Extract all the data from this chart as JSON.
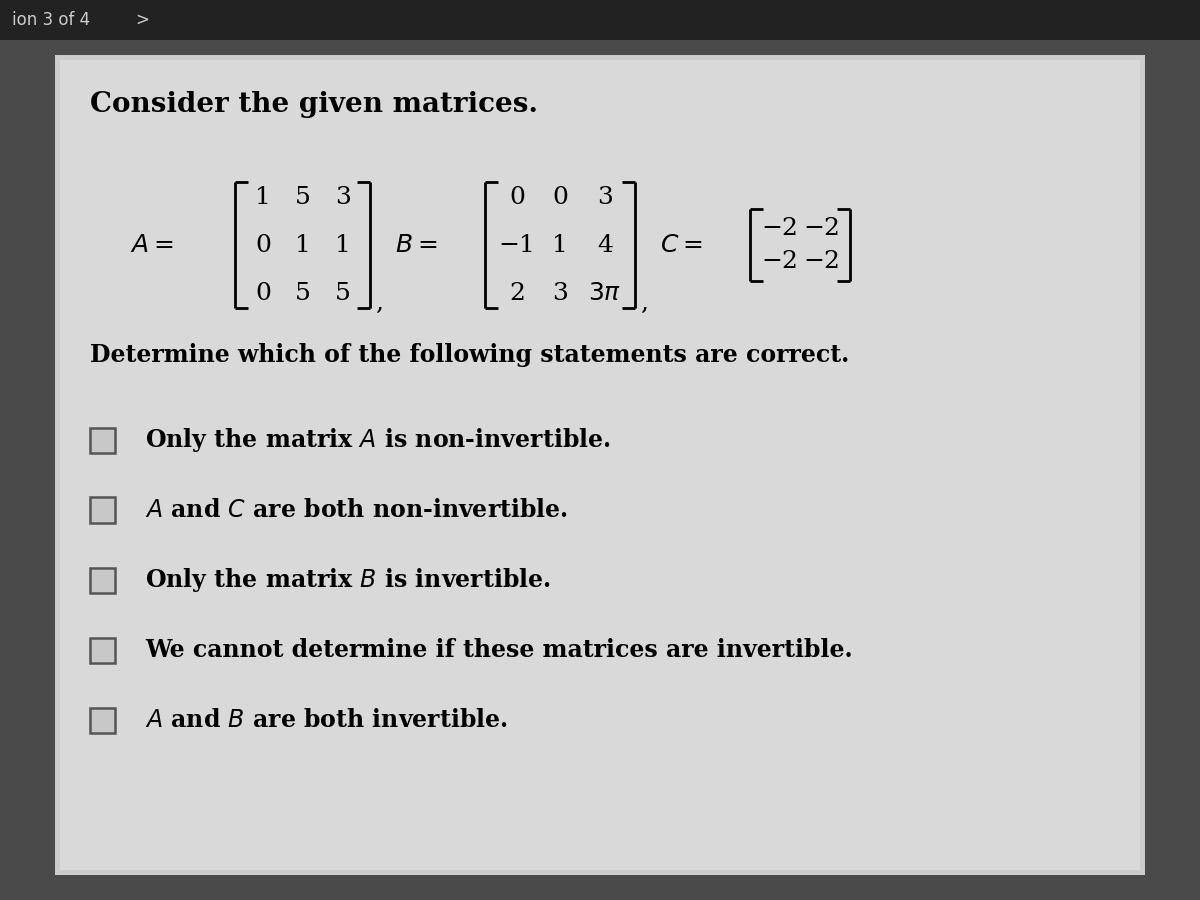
{
  "bg_color": "#4a4a4a",
  "header_text": "ion 3 of 4   >",
  "title": "Consider the given matrices.",
  "matrix_A_rows": [
    "1  5  3",
    "0  1  1",
    "0  5  5"
  ],
  "matrix_B_rows": [
    "0   0   3",
    "−1   1   4",
    "2   3   3π"
  ],
  "matrix_C_rows": [
    "−2  −2",
    "−2  −2"
  ],
  "body_text": "Determine which of the following statements are correct.",
  "options": [
    "Only the matrix $A$ is non-invertible.",
    "$A$ and $C$ are both non-invertible.",
    "Only the matrix $B$ is invertible.",
    "We cannot determine if these matrices are invertible.",
    "$A$ and $B$ are both invertible."
  ],
  "card_color": "#d8d8d8",
  "text_color": "#000000",
  "title_fontsize": 20,
  "body_fontsize": 17,
  "option_fontsize": 17,
  "matrix_fontsize": 18,
  "label_fontsize": 18
}
